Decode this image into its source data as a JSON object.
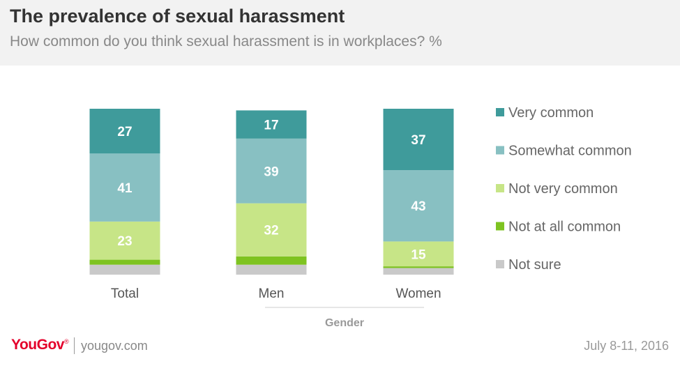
{
  "header": {
    "title": "The prevalence of sexual harassment",
    "subtitle": "How common do you think sexual harassment is in workplaces? %"
  },
  "footer": {
    "logo": "YouGov",
    "site": "yougov.com",
    "date": "July 8-11, 2016"
  },
  "chart_data": {
    "type": "bar",
    "stacked": true,
    "categories": [
      "Total",
      "Men",
      "Women"
    ],
    "group_label": "Gender",
    "series": [
      {
        "name": "Very common",
        "color": "#3f9b9b",
        "values": [
          27,
          17,
          37
        ]
      },
      {
        "name": "Somewhat common",
        "color": "#88c0c2",
        "values": [
          41,
          39,
          43
        ]
      },
      {
        "name": "Not very common",
        "color": "#c7e587",
        "values": [
          23,
          32,
          15
        ]
      },
      {
        "name": "Not at all common",
        "color": "#7ec321",
        "values": [
          3,
          5,
          1
        ]
      },
      {
        "name": "Not sure",
        "color": "#c9c9c9",
        "values": [
          6,
          6,
          4
        ]
      }
    ],
    "legend_position": "right",
    "ylim": [
      0,
      100
    ],
    "grid": false
  }
}
